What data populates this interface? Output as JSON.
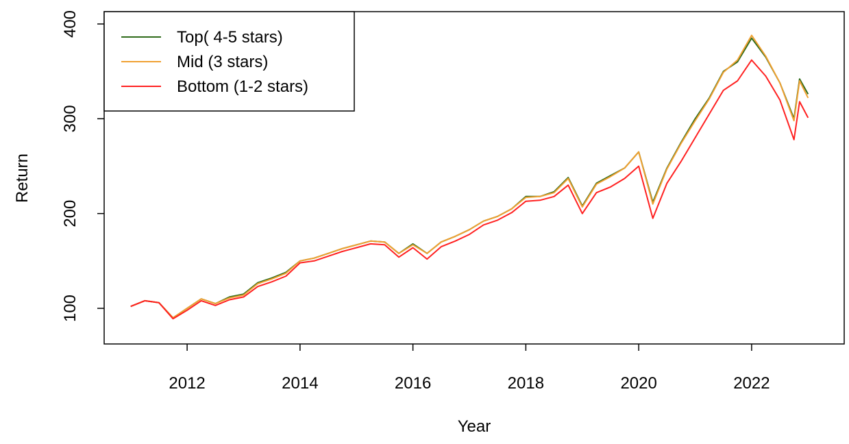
{
  "chart_data": {
    "type": "line",
    "x_label": "Year",
    "y_label": "Return",
    "x": [
      2011.0,
      2011.25,
      2011.5,
      2011.75,
      2012.0,
      2012.25,
      2012.5,
      2012.75,
      2013.0,
      2013.25,
      2013.5,
      2013.75,
      2014.0,
      2014.25,
      2014.5,
      2014.75,
      2015.0,
      2015.25,
      2015.5,
      2015.75,
      2016.0,
      2016.25,
      2016.5,
      2016.75,
      2017.0,
      2017.25,
      2017.5,
      2017.75,
      2018.0,
      2018.25,
      2018.5,
      2018.75,
      2019.0,
      2019.25,
      2019.5,
      2019.75,
      2020.0,
      2020.25,
      2020.5,
      2020.75,
      2021.0,
      2021.25,
      2021.5,
      2021.75,
      2022.0,
      2022.25,
      2022.5,
      2022.75,
      2022.85,
      2023.0
    ],
    "series": [
      {
        "name": "Top( 4-5 stars)",
        "color": "#2e6b1a",
        "values": [
          102,
          108,
          106,
          90,
          100,
          110,
          105,
          112,
          115,
          127,
          132,
          138,
          150,
          153,
          158,
          163,
          167,
          171,
          170,
          158,
          168,
          158,
          170,
          176,
          183,
          192,
          197,
          205,
          218,
          218,
          223,
          238,
          208,
          232,
          240,
          248,
          265,
          212,
          248,
          275,
          300,
          322,
          350,
          360,
          385,
          365,
          338,
          300,
          342,
          326
        ]
      },
      {
        "name": "Mid (3 stars)",
        "color": "#f0a030",
        "values": [
          102,
          108,
          106,
          90,
          100,
          110,
          105,
          111,
          114,
          126,
          131,
          137,
          150,
          153,
          158,
          163,
          167,
          171,
          170,
          158,
          167,
          158,
          170,
          176,
          183,
          192,
          197,
          205,
          217,
          218,
          222,
          237,
          207,
          231,
          239,
          248,
          265,
          210,
          247,
          274,
          298,
          321,
          349,
          362,
          388,
          366,
          338,
          298,
          340,
          322
        ]
      },
      {
        "name": "Bottom (1-2 stars)",
        "color": "#ff2020",
        "values": [
          102,
          108,
          106,
          89,
          98,
          108,
          103,
          109,
          112,
          123,
          128,
          134,
          148,
          150,
          155,
          160,
          164,
          168,
          167,
          154,
          164,
          152,
          165,
          171,
          178,
          188,
          193,
          201,
          213,
          214,
          218,
          230,
          200,
          222,
          228,
          237,
          250,
          195,
          232,
          255,
          280,
          305,
          330,
          340,
          362,
          345,
          320,
          278,
          318,
          301
        ]
      }
    ],
    "xlim": [
      2010.53,
      2023.64
    ],
    "ylim": [
      62.4,
      413
    ],
    "xticks": [
      2012,
      2014,
      2016,
      2018,
      2020,
      2022
    ],
    "yticks": [
      100,
      200,
      300,
      400
    ],
    "legend": "top-left"
  }
}
